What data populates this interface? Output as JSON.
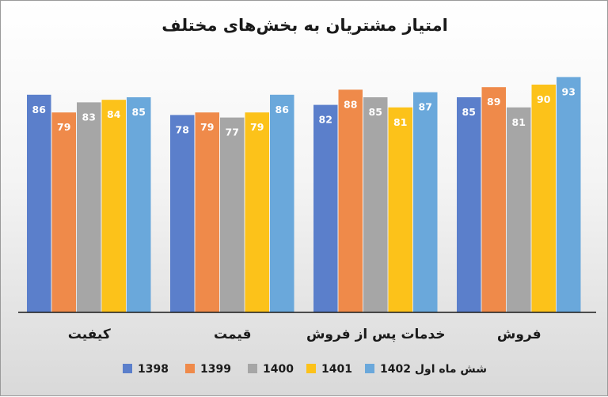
{
  "chart_data": {
    "type": "bar",
    "title": "امتیاز مشتریان به بخش‌های مختلف",
    "categories": [
      "کیفیت",
      "قیمت",
      "خدمات پس از فروش",
      "فروش"
    ],
    "series": [
      {
        "name": "1398",
        "color": "#5b7fcb",
        "values": [
          86,
          78,
          82,
          85
        ]
      },
      {
        "name": "1399",
        "color": "#ef8a4a",
        "values": [
          79,
          79,
          88,
          89
        ]
      },
      {
        "name": "1400",
        "color": "#a6a6a6",
        "values": [
          83,
          77,
          85,
          81
        ]
      },
      {
        "name": "1401",
        "color": "#fcc21a",
        "values": [
          84,
          79,
          81,
          90
        ]
      },
      {
        "name": "شش ماه اول 1402",
        "color": "#6aa8db",
        "values": [
          85,
          86,
          87,
          93
        ]
      }
    ],
    "xlabel": "",
    "ylabel": "",
    "ylim": [
      0,
      100
    ],
    "grid": false,
    "data_labels": true,
    "legend_position": "bottom"
  }
}
